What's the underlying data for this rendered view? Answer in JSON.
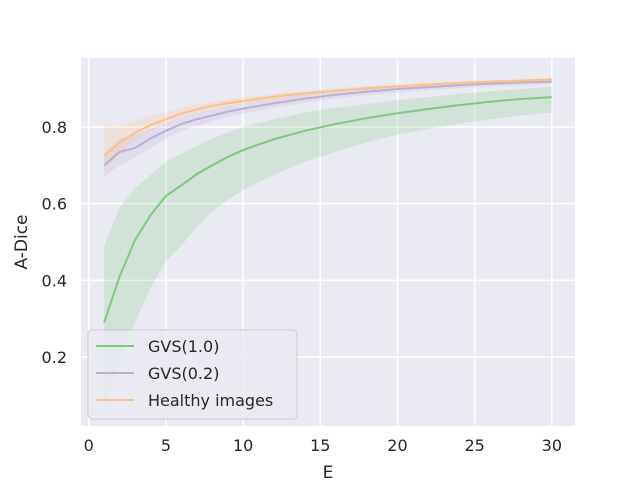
{
  "chart_data": {
    "type": "line",
    "xlabel": "E",
    "ylabel": "A-Dice",
    "xlim": [
      -0.5,
      31.5
    ],
    "ylim": [
      0.02,
      0.98
    ],
    "xticks": [
      0,
      5,
      10,
      15,
      20,
      25,
      30
    ],
    "yticks": [
      0.2,
      0.4,
      0.6,
      0.8
    ],
    "ytick_labels": [
      "0.2",
      "0.4",
      "0.6",
      "0.8"
    ],
    "grid": true,
    "legend_position": "bottom-left",
    "series": [
      {
        "name": "GVS(1.0)",
        "color": "#7fc97f",
        "x": [
          1,
          2,
          3,
          4,
          5,
          6,
          7,
          8,
          9,
          10,
          12,
          14,
          16,
          18,
          20,
          22,
          24,
          26,
          28,
          30
        ],
        "y": [
          0.29,
          0.41,
          0.505,
          0.57,
          0.62,
          0.648,
          0.677,
          0.7,
          0.722,
          0.74,
          0.768,
          0.79,
          0.808,
          0.823,
          0.836,
          0.847,
          0.857,
          0.866,
          0.873,
          0.878
        ],
        "lower": [
          0.07,
          0.19,
          0.29,
          0.38,
          0.45,
          0.49,
          0.54,
          0.58,
          0.61,
          0.635,
          0.675,
          0.71,
          0.735,
          0.76,
          0.78,
          0.795,
          0.808,
          0.82,
          0.83,
          0.838
        ],
        "upper": [
          0.49,
          0.59,
          0.64,
          0.675,
          0.71,
          0.73,
          0.75,
          0.77,
          0.785,
          0.8,
          0.82,
          0.838,
          0.85,
          0.86,
          0.87,
          0.878,
          0.886,
          0.893,
          0.899,
          0.905
        ]
      },
      {
        "name": "GVS(0.2)",
        "color": "#beaed4",
        "x": [
          1,
          2,
          3,
          4,
          5,
          6,
          7,
          8,
          9,
          10,
          12,
          14,
          16,
          18,
          20,
          22,
          24,
          26,
          28,
          30
        ],
        "y": [
          0.7,
          0.735,
          0.745,
          0.77,
          0.79,
          0.808,
          0.82,
          0.83,
          0.84,
          0.848,
          0.862,
          0.874,
          0.884,
          0.892,
          0.899,
          0.904,
          0.909,
          0.913,
          0.916,
          0.918
        ],
        "lower": [
          0.67,
          0.7,
          0.72,
          0.745,
          0.77,
          0.79,
          0.804,
          0.815,
          0.826,
          0.835,
          0.85,
          0.864,
          0.874,
          0.883,
          0.89,
          0.896,
          0.901,
          0.906,
          0.909,
          0.912
        ],
        "upper": [
          0.73,
          0.77,
          0.78,
          0.795,
          0.81,
          0.825,
          0.836,
          0.845,
          0.854,
          0.861,
          0.874,
          0.885,
          0.894,
          0.901,
          0.907,
          0.912,
          0.917,
          0.92,
          0.923,
          0.925
        ]
      },
      {
        "name": "Healthy images",
        "color": "#fdc086",
        "x": [
          1,
          2,
          3,
          4,
          5,
          6,
          7,
          8,
          9,
          10,
          12,
          14,
          16,
          18,
          20,
          22,
          24,
          26,
          28,
          30
        ],
        "y": [
          0.725,
          0.76,
          0.785,
          0.805,
          0.82,
          0.835,
          0.846,
          0.855,
          0.862,
          0.868,
          0.879,
          0.888,
          0.895,
          0.901,
          0.906,
          0.911,
          0.915,
          0.918,
          0.921,
          0.924
        ],
        "lower": [
          0.69,
          0.73,
          0.765,
          0.79,
          0.807,
          0.823,
          0.835,
          0.845,
          0.853,
          0.86,
          0.871,
          0.881,
          0.889,
          0.896,
          0.901,
          0.906,
          0.91,
          0.914,
          0.917,
          0.92
        ],
        "upper": [
          0.81,
          0.8,
          0.815,
          0.83,
          0.838,
          0.85,
          0.858,
          0.866,
          0.872,
          0.877,
          0.887,
          0.895,
          0.902,
          0.907,
          0.911,
          0.915,
          0.919,
          0.922,
          0.925,
          0.928
        ]
      }
    ]
  }
}
